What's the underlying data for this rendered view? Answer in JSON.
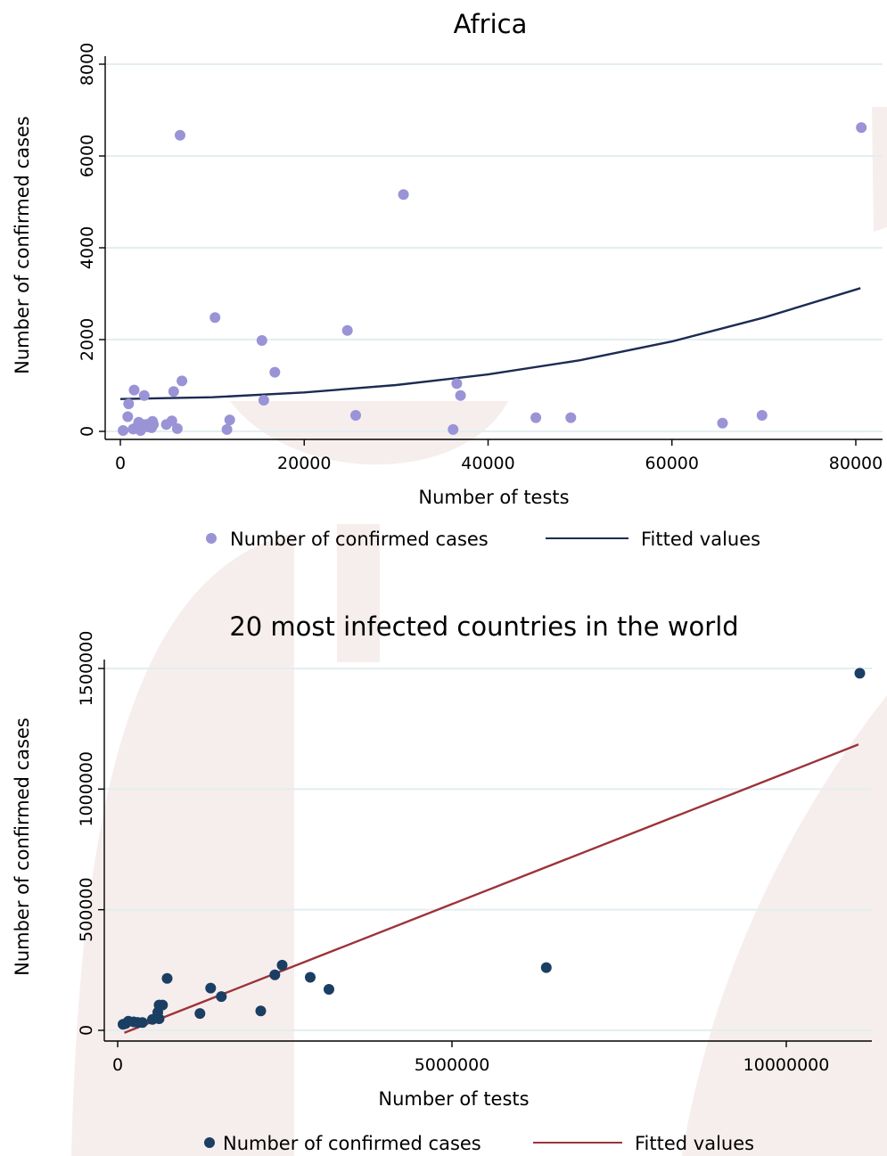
{
  "colors": {
    "scatter_top": "#9a93d6",
    "fit_top": "#1c2b52",
    "scatter_bottom": "#1b3e63",
    "fit_bottom": "#9c3339",
    "grid": "#e3eef0",
    "watermark": "#efe0de"
  },
  "chart_data": [
    {
      "type": "scatter",
      "title": "Africa",
      "xlabel": "Number of tests",
      "ylabel": "Number of confirmed cases",
      "xlim": [
        0,
        80000
      ],
      "ylim": [
        0,
        8000
      ],
      "x_ticks": [
        0,
        20000,
        40000,
        60000,
        80000
      ],
      "y_ticks": [
        0,
        2000,
        4000,
        6000,
        8000
      ],
      "x_tick_labels": [
        "0",
        "20000",
        "40000",
        "60000",
        "80000"
      ],
      "y_tick_labels": [
        "0",
        "2000",
        "4000",
        "6000",
        "8000"
      ],
      "grid": true,
      "legend_position": "bottom",
      "legend": [
        "Number of confirmed cases",
        "Fitted values"
      ],
      "series": [
        {
          "name": "Number of confirmed cases",
          "kind": "scatter",
          "points": [
            [
              300,
              20
            ],
            [
              800,
              320
            ],
            [
              900,
              600
            ],
            [
              1400,
              50
            ],
            [
              1500,
              900
            ],
            [
              1800,
              100
            ],
            [
              2000,
              200
            ],
            [
              2100,
              50
            ],
            [
              2200,
              20
            ],
            [
              2400,
              150
            ],
            [
              2600,
              780
            ],
            [
              2800,
              150
            ],
            [
              3000,
              100
            ],
            [
              3300,
              180
            ],
            [
              3400,
              80
            ],
            [
              3500,
              220
            ],
            [
              3600,
              150
            ],
            [
              5000,
              150
            ],
            [
              5600,
              230
            ],
            [
              5800,
              870
            ],
            [
              6200,
              60
            ],
            [
              6500,
              6450
            ],
            [
              6700,
              1100
            ],
            [
              10300,
              2480
            ],
            [
              11600,
              40
            ],
            [
              11900,
              250
            ],
            [
              15400,
              1980
            ],
            [
              15600,
              680
            ],
            [
              16800,
              1290
            ],
            [
              24700,
              2200
            ],
            [
              25600,
              350
            ],
            [
              30800,
              5160
            ],
            [
              36200,
              40
            ],
            [
              36600,
              1040
            ],
            [
              37000,
              780
            ],
            [
              45200,
              300
            ],
            [
              49000,
              300
            ],
            [
              65500,
              180
            ],
            [
              69800,
              350
            ],
            [
              80600,
              6620
            ]
          ]
        },
        {
          "name": "Fitted values",
          "kind": "line",
          "points": [
            [
              0,
              705
            ],
            [
              10000,
              743
            ],
            [
              20000,
              848
            ],
            [
              30000,
              1010
            ],
            [
              40000,
              1240
            ],
            [
              50000,
              1550
            ],
            [
              60000,
              1960
            ],
            [
              70000,
              2480
            ],
            [
              80500,
              3120
            ]
          ]
        }
      ]
    },
    {
      "type": "scatter",
      "title": "20 most infected countries in the world",
      "xlabel": "Number of tests",
      "ylabel": "Number of confirmed cases",
      "xlim": [
        0,
        11000000
      ],
      "ylim": [
        0,
        1500000
      ],
      "x_ticks": [
        0,
        5000000,
        10000000
      ],
      "y_ticks": [
        0,
        500000,
        1000000,
        1500000
      ],
      "x_tick_labels": [
        "0",
        "5000000",
        "10000000"
      ],
      "y_tick_labels": [
        "0",
        "500000",
        "1000000",
        "1500000"
      ],
      "grid": true,
      "legend_position": "bottom",
      "legend": [
        "Number of confirmed cases",
        "Fitted values"
      ],
      "series": [
        {
          "name": "Number of confirmed cases",
          "kind": "scatter",
          "points": [
            [
              80000,
              25000
            ],
            [
              120000,
              28000
            ],
            [
              160000,
              38000
            ],
            [
              240000,
              35000
            ],
            [
              300000,
              33000
            ],
            [
              370000,
              32000
            ],
            [
              520000,
              45000
            ],
            [
              620000,
              48000
            ],
            [
              600000,
              75000
            ],
            [
              670000,
              105000
            ],
            [
              620000,
              105000
            ],
            [
              740000,
              215000
            ],
            [
              1230000,
              70000
            ],
            [
              1390000,
              175000
            ],
            [
              1550000,
              140000
            ],
            [
              2140000,
              80000
            ],
            [
              2350000,
              230000
            ],
            [
              2460000,
              270000
            ],
            [
              2880000,
              220000
            ],
            [
              3160000,
              170000
            ],
            [
              6410000,
              260000
            ],
            [
              11100000,
              1480000
            ]
          ]
        },
        {
          "name": "Fitted values",
          "kind": "line",
          "points": [
            [
              100000,
              -10000
            ],
            [
              11080000,
              1185000
            ]
          ]
        }
      ]
    }
  ]
}
